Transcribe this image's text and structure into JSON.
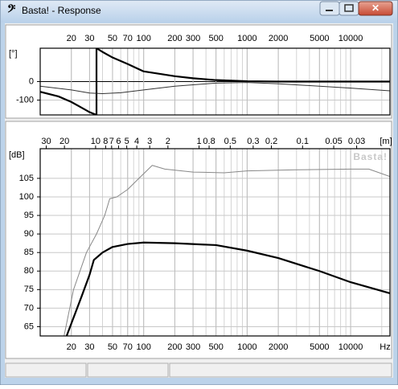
{
  "window": {
    "title": "Basta! - Response"
  },
  "chart_data": [
    {
      "type": "line",
      "xscale": "log",
      "xaxis_position": "top",
      "grid": true,
      "y_unit": "[°]",
      "xlim": [
        10,
        24000
      ],
      "xticks": [
        20,
        30,
        50,
        70,
        100,
        200,
        300,
        500,
        1000,
        2000,
        5000,
        10000
      ],
      "ylim": [
        -180,
        180
      ],
      "yticks": [
        -100,
        0
      ],
      "series": [
        {
          "color": "#000000",
          "line_width": 2.2,
          "x": [
            10,
            15,
            20,
            25,
            30,
            35,
            35,
            40,
            50,
            70,
            100,
            150,
            200,
            300,
            500,
            1000,
            2000,
            5000,
            10000,
            24000
          ],
          "values": [
            -55,
            -80,
            -110,
            -140,
            -165,
            -180,
            180,
            160,
            130,
            95,
            55,
            40,
            29,
            18,
            8,
            2,
            0,
            0,
            0,
            0
          ]
        },
        {
          "color": "#333333",
          "line_width": 1,
          "x": [
            10,
            20,
            30,
            40,
            60,
            100,
            200,
            500,
            1000,
            2000,
            5000,
            10000,
            24000
          ],
          "values": [
            -25,
            -45,
            -62,
            -65,
            -60,
            -45,
            -25,
            -8,
            -5,
            -12,
            -25,
            -35,
            -50
          ]
        }
      ]
    },
    {
      "type": "line",
      "xscale": "log",
      "xaxis_position": "bottom",
      "grid": true,
      "y_unit": "[dB]",
      "x_unit": "Hz",
      "x2_unit": "[m]",
      "watermark": "Basta!",
      "xlim": [
        10,
        24000
      ],
      "xticks": [
        20,
        30,
        50,
        70,
        100,
        200,
        300,
        500,
        1000,
        2000,
        5000,
        10000
      ],
      "x2lim": [
        34.3,
        0.0143
      ],
      "x2ticks": [
        30,
        20,
        10,
        8,
        7,
        6,
        5,
        4,
        3,
        2,
        1,
        0.8,
        0.5,
        0.3,
        0.2,
        0.1,
        0.05,
        0.03
      ],
      "ylim": [
        62.5,
        113
      ],
      "yticks": [
        65,
        70,
        75,
        80,
        85,
        90,
        95,
        100,
        105
      ],
      "series": [
        {
          "color": "#888888",
          "line_width": 1,
          "x": [
            17,
            21,
            28,
            35,
            42,
            47,
            55,
            70,
            90,
            121,
            160,
            300,
            600,
            1000,
            3000,
            10000,
            15000,
            24000
          ],
          "values": [
            62.5,
            75,
            85,
            90,
            95,
            99.5,
            100,
            102,
            105,
            108.5,
            107.5,
            106.7,
            106.5,
            107,
            107.3,
            107.5,
            107.5,
            105.5
          ]
        },
        {
          "color": "#000000",
          "line_width": 2.2,
          "x": [
            18,
            25,
            30,
            33,
            40,
            50,
            70,
            100,
            200,
            500,
            1000,
            2000,
            5000,
            10000,
            24000
          ],
          "values": [
            62.5,
            73,
            79,
            83,
            85,
            86.5,
            87.3,
            87.7,
            87.5,
            87,
            85.5,
            83.5,
            80,
            77,
            74
          ]
        }
      ]
    }
  ]
}
